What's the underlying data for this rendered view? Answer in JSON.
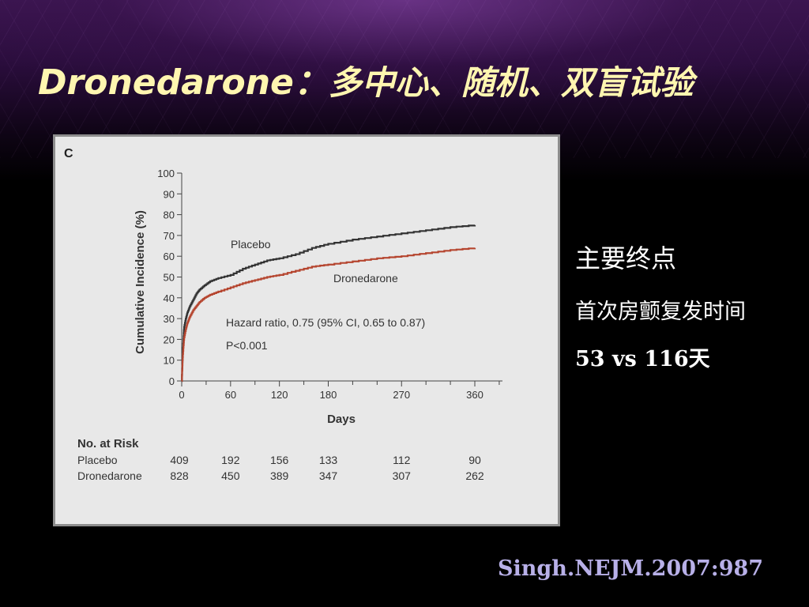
{
  "slide": {
    "title_en": "Dronedarone：",
    "title_cn": "多中心、随机、双盲试验",
    "side_heading": "主要终点",
    "side_line1": "首次房颤复发时间",
    "side_line2": "53 vs 116天",
    "citation": "Singh.NEJM.2007:987",
    "colors": {
      "title": "#fff6b0",
      "citation": "#b8b0e8",
      "placebo": "#333333",
      "dronedarone": "#b5452f"
    }
  },
  "chart_data": {
    "type": "line",
    "panel_label": "C",
    "xlabel": "Days",
    "ylabel": "Cumulative Incidence (%)",
    "xlim": [
      0,
      360
    ],
    "ylim": [
      0,
      100
    ],
    "x_ticks": [
      0,
      60,
      120,
      180,
      270,
      360
    ],
    "y_ticks": [
      0,
      10,
      20,
      30,
      40,
      50,
      60,
      70,
      80,
      90,
      100
    ],
    "series": [
      {
        "name": "Placebo",
        "color": "#333333",
        "style": "step",
        "x": [
          0,
          1,
          2,
          3,
          5,
          7,
          10,
          14,
          18,
          22,
          28,
          35,
          45,
          60,
          75,
          90,
          105,
          120,
          140,
          160,
          180,
          210,
          240,
          270,
          300,
          330,
          360
        ],
        "y": [
          0,
          12,
          20,
          26,
          30,
          33,
          36,
          39,
          42,
          44,
          46,
          48,
          49.5,
          51,
          54,
          56,
          58,
          59,
          61,
          64,
          66,
          68,
          69.5,
          71,
          72.5,
          74,
          75
        ]
      },
      {
        "name": "Dronedarone",
        "color": "#b5452f",
        "style": "step",
        "x": [
          0,
          1,
          2,
          3,
          5,
          7,
          10,
          14,
          18,
          22,
          28,
          35,
          45,
          60,
          75,
          90,
          105,
          120,
          140,
          160,
          180,
          210,
          240,
          270,
          300,
          330,
          360
        ],
        "y": [
          0,
          10,
          16,
          21,
          25,
          28,
          31,
          34,
          36,
          38,
          40,
          41.5,
          43,
          45,
          47,
          48.5,
          50,
          51,
          53,
          55,
          56,
          57.5,
          59,
          60,
          61.5,
          63,
          64
        ]
      }
    ],
    "annotations": [
      "Hazard ratio, 0.75 (95% CI, 0.65 to 0.87)",
      "P<0.001"
    ],
    "risk_table": {
      "title": "No. at Risk",
      "days": [
        0,
        60,
        120,
        180,
        270,
        360
      ],
      "rows": [
        {
          "label": "Placebo",
          "values": [
            "409",
            "192",
            "156",
            "133",
            "112",
            "90"
          ]
        },
        {
          "label": "Dronedarone",
          "values": [
            "828",
            "450",
            "389",
            "347",
            "307",
            "262"
          ]
        }
      ]
    }
  }
}
